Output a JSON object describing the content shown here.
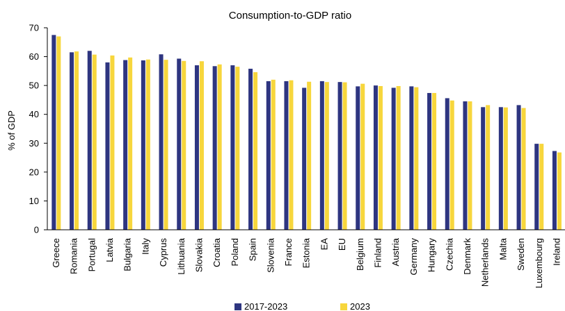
{
  "chart_data": {
    "type": "bar",
    "title": "Consumption-to-GDP ratio",
    "xlabel": "",
    "ylabel": "% of GDP",
    "ylim": [
      0,
      70
    ],
    "yticks": [
      0,
      10,
      20,
      30,
      40,
      50,
      60,
      70
    ],
    "grid": false,
    "legend_position": "bottom",
    "categories": [
      "Greece",
      "Romania",
      "Portugal",
      "Latvia",
      "Bulgaria",
      "Italy",
      "Cyprus",
      "Lithuania",
      "Slovakia",
      "Croatia",
      "Poland",
      "Spain",
      "Slovenia",
      "France",
      "Estonia",
      "EA",
      "EU",
      "Belgium",
      "Finland",
      "Austria",
      "Germany",
      "Hungary",
      "Czechia",
      "Denmark",
      "Netherlands",
      "Malta",
      "Sweden",
      "Luxembourg",
      "Ireland"
    ],
    "series": [
      {
        "name": "2017-2023",
        "color": "#2e3580",
        "values": [
          67.5,
          61.5,
          62.0,
          58.0,
          58.8,
          58.7,
          60.8,
          59.3,
          57.0,
          56.7,
          57.0,
          55.8,
          51.5,
          51.5,
          49.2,
          51.5,
          51.2,
          49.7,
          50.0,
          49.2,
          49.7,
          47.4,
          45.6,
          44.5,
          42.5,
          42.5,
          43.2,
          29.8,
          27.3
        ]
      },
      {
        "name": "2023",
        "color": "#f7d63c",
        "values": [
          67.0,
          61.8,
          60.7,
          60.4,
          59.7,
          59.0,
          58.9,
          58.5,
          58.4,
          57.3,
          56.5,
          54.6,
          52.0,
          51.8,
          51.3,
          51.2,
          51.1,
          50.6,
          49.8,
          49.8,
          49.4,
          47.4,
          44.8,
          44.5,
          43.2,
          42.4,
          42.2,
          29.8,
          26.8
        ]
      }
    ]
  }
}
